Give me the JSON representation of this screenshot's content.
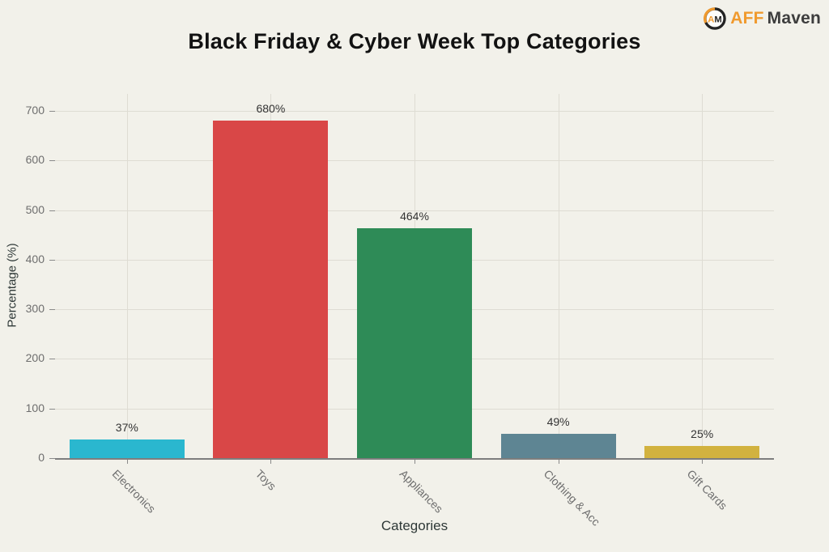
{
  "title": "Black Friday & Cyber Week Top Categories",
  "logo": {
    "monogram": "AM",
    "brand_primary": "AFF",
    "brand_secondary": "Maven",
    "accent_color": "#F09A2E",
    "dark_color": "#2B2B2B"
  },
  "chart_data": {
    "type": "bar",
    "title": "Black Friday & Cyber Week Top Categories",
    "categories": [
      "Electronics",
      "Toys",
      "Appliances",
      "Clothing & Acc",
      "Gift Cards"
    ],
    "values": [
      37,
      680,
      464,
      49,
      25
    ],
    "value_labels": [
      "37%",
      "680%",
      "464%",
      "49%",
      "25%"
    ],
    "bar_colors": [
      "#2AB7CF",
      "#D94747",
      "#2E8B57",
      "#5E8593",
      "#D2B23F"
    ],
    "xlabel": "Categories",
    "ylabel": "Percentage (%)",
    "ylim": [
      0,
      737
    ],
    "yticks": [
      0,
      100,
      200,
      300,
      400,
      500,
      600,
      700
    ],
    "grid": true,
    "legend": false
  },
  "theme": {
    "background": "#F2F1EA",
    "grid_color": "#DEDCD3",
    "axis_line_color": "#7E7E7E",
    "tick_color": "#8A8A8A",
    "tick_label_color": "#6E6E6E",
    "value_label_color": "#333333",
    "axis_title_color": "#2E3837",
    "title_color": "#121212"
  }
}
